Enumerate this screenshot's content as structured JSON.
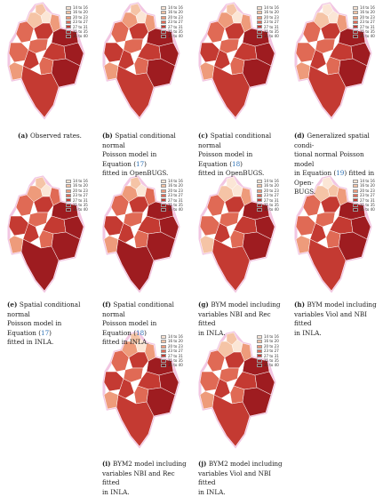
{
  "legend": {
    "title": "",
    "classes": [
      {
        "label": "14 to 16",
        "color": "#fbe6d6"
      },
      {
        "label": "16 to 20",
        "color": "#f5c4a6"
      },
      {
        "label": "20 to 23",
        "color": "#ee9b7b"
      },
      {
        "label": "23 to 27",
        "color": "#e06a55"
      },
      {
        "label": "27 to 31",
        "color": "#c43a32"
      },
      {
        "label": "31 to 35",
        "color": "#9e1c20"
      },
      {
        "label": "35 to 40",
        "color": "#780d14"
      }
    ]
  },
  "panels": [
    {
      "letter": "(a)",
      "lines": [
        "Observed rates."
      ],
      "ref": "",
      "ref_suffix": ""
    },
    {
      "letter": "(b)",
      "lines": [
        "Spatial conditional normal",
        "Poisson model in Equation (17)",
        "fitted in OpenBUGS."
      ]
    },
    {
      "letter": "(c)",
      "lines": [
        "Spatial conditional normal",
        "Poisson model in Equation (18)",
        "fitted in OpenBUGS."
      ]
    },
    {
      "letter": "(d)",
      "lines": [
        "Generalized spatial condi-",
        "tional normal Poisson model",
        "in Equation (19) fitted in Open-",
        "BUGS."
      ]
    },
    {
      "letter": "(e)",
      "lines": [
        "Spatial conditional normal",
        "Poisson model in Equation (17)",
        "fitted in INLA."
      ]
    },
    {
      "letter": "(f)",
      "lines": [
        "Spatial conditional normal",
        "Poisson model in Equation (18)",
        "fitted in INLA."
      ]
    },
    {
      "letter": "(g)",
      "lines": [
        "BYM model including",
        "variables NBI and Rec fitted",
        "in INLA."
      ]
    },
    {
      "letter": "(h)",
      "lines": [
        "BYM model including",
        "variables Viol and NBI fitted",
        "in INLA."
      ]
    },
    {
      "letter": "(i)",
      "lines": [
        "BYM2 model including",
        "variables NBI and Rec fitted",
        "in INLA."
      ]
    },
    {
      "letter": "(j)",
      "lines": [
        "BYM2 model including",
        "variables Viol and NBI fitted",
        "in INLA."
      ]
    }
  ]
}
